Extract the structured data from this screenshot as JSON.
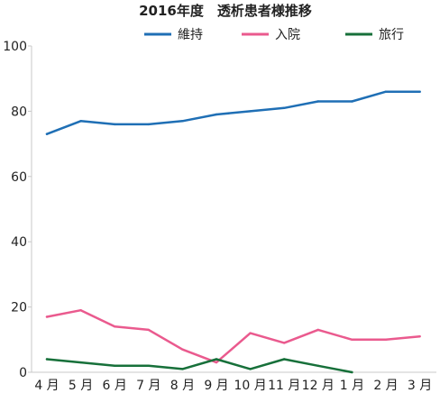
{
  "chart_data": {
    "type": "line",
    "title": "2016年度　透析患者様推移",
    "categories": [
      "4 月",
      "5 月",
      "6 月",
      "7 月",
      "8 月",
      "9 月",
      "10 月",
      "11 月",
      "12 月",
      "1 月",
      "2 月",
      "3 月"
    ],
    "ylim": [
      0,
      100
    ],
    "yticks": [
      0,
      20,
      40,
      60,
      80,
      100
    ],
    "legend_position": "top",
    "grid": false,
    "series": [
      {
        "name": "維持",
        "color": "#1f6fb5",
        "values": [
          73,
          77,
          76,
          76,
          77,
          79,
          80,
          81,
          83,
          83,
          86,
          86
        ]
      },
      {
        "name": "入院",
        "color": "#ea5a8e",
        "values": [
          17,
          19,
          14,
          13,
          7,
          3,
          12,
          9,
          13,
          10,
          10,
          11
        ]
      },
      {
        "name": "旅行",
        "color": "#17703a",
        "values": [
          4,
          3,
          2,
          2,
          1,
          4,
          1,
          4,
          2,
          0,
          null,
          null
        ]
      }
    ]
  }
}
